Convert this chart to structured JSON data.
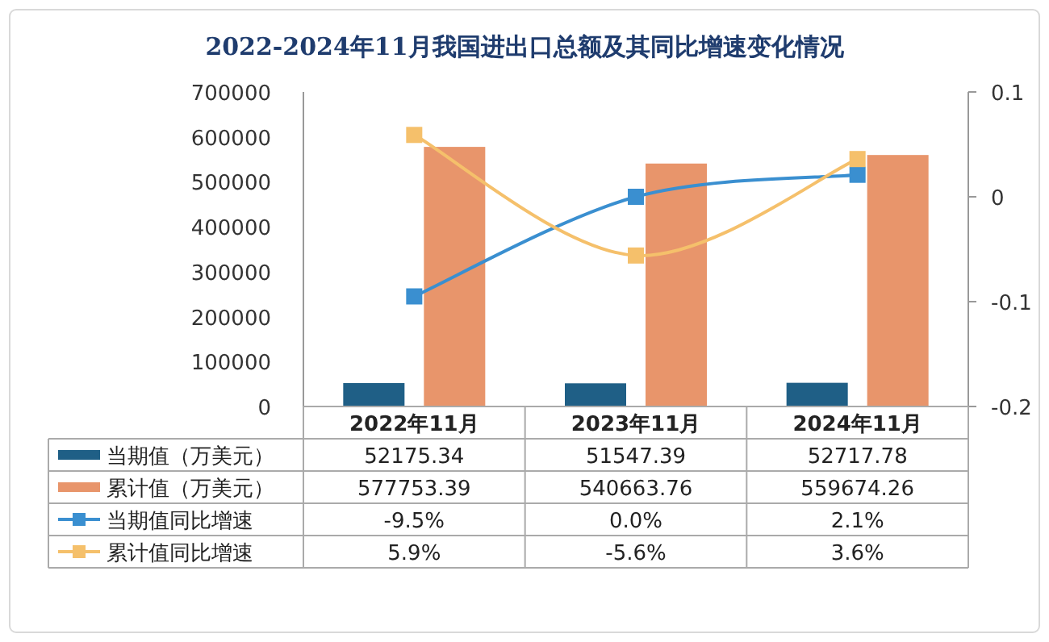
{
  "chart_data": {
    "type": "bar",
    "title": "2022-2024年11月我国进出口总额及其同比增速变化情况",
    "categories": [
      "2022年11月",
      "2023年11月",
      "2024年11月"
    ],
    "series": [
      {
        "name": "当期值（万美元）",
        "color": "#1f5f86",
        "values": [
          52175.34,
          51547.39,
          52717.78
        ],
        "value_labels": [
          "52175.34",
          "51547.39",
          "52717.78"
        ]
      },
      {
        "name": "累计值（万美元）",
        "color": "#e8956b",
        "values": [
          577753.39,
          540663.76,
          559674.26
        ],
        "value_labels": [
          "577753.39",
          "540663.76",
          "559674.26"
        ]
      },
      {
        "name": "当期值同比增速",
        "type": "line",
        "axis": "y2",
        "color": "#3a8fd0",
        "values": [
          -0.095,
          0.0,
          0.021
        ],
        "value_labels": [
          "-9.5%",
          "0.0%",
          "2.1%"
        ]
      },
      {
        "name": "累计值同比增速",
        "type": "line",
        "axis": "y2",
        "color": "#f5c06b",
        "values": [
          0.059,
          -0.056,
          0.036
        ],
        "value_labels": [
          "5.9%",
          "-5.6%",
          "3.6%"
        ]
      }
    ],
    "ylim": [
      0,
      700000
    ],
    "yticks": [
      0,
      100000,
      200000,
      300000,
      400000,
      500000,
      600000,
      700000
    ],
    "y2lim": [
      -0.2,
      0.1
    ],
    "y2ticks": [
      -0.2,
      -0.1,
      0,
      0.1
    ],
    "marker": "square",
    "grid": false,
    "legend": "bottom"
  }
}
